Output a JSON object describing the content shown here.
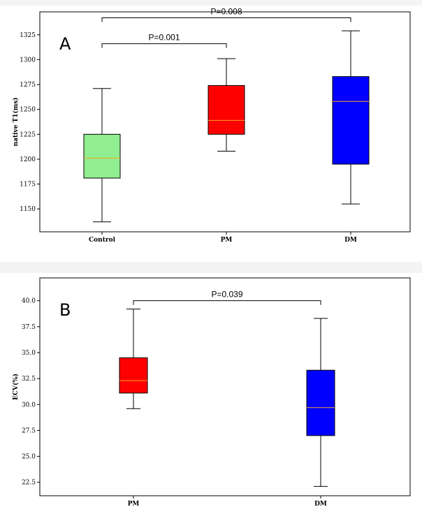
{
  "chart_data": [
    {
      "type": "box",
      "panel_label": "A",
      "ylabel": "native T1(ms)",
      "xlabel": "",
      "ylim": [
        1127,
        1348
      ],
      "yticks": [
        "1150",
        "1175",
        "1200",
        "1225",
        "1250",
        "1275",
        "1300",
        "1325"
      ],
      "categories": [
        "Control",
        "PM",
        "DM"
      ],
      "boxes": [
        {
          "name": "Control",
          "whisker_low": 1137,
          "q1": 1181,
          "median": 1201,
          "q3": 1225,
          "whisker_high": 1271,
          "color": "#90ee90"
        },
        {
          "name": "PM",
          "whisker_low": 1208,
          "q1": 1225,
          "median": 1239,
          "q3": 1274,
          "whisker_high": 1301,
          "color": "#ff0000"
        },
        {
          "name": "DM",
          "whisker_low": 1155,
          "q1": 1195,
          "median": 1258,
          "q3": 1283,
          "whisker_high": 1329,
          "color": "#0000ff"
        }
      ],
      "annotations": [
        {
          "text": "P=0.001",
          "from": "Control",
          "to": "PM",
          "level": 1316
        },
        {
          "text": "P=0.008",
          "from": "Control",
          "to": "DM",
          "level": 1342
        }
      ]
    },
    {
      "type": "box",
      "panel_label": "B",
      "ylabel": "ECV(%)",
      "xlabel": "",
      "ylim": [
        21.2,
        42.2
      ],
      "yticks": [
        "22.5",
        "25.0",
        "27.5",
        "30.0",
        "32.5",
        "35.0",
        "37.5",
        "40.0"
      ],
      "categories": [
        "PM",
        "DM"
      ],
      "boxes": [
        {
          "name": "PM",
          "whisker_low": 29.6,
          "q1": 31.1,
          "median": 32.3,
          "q3": 34.5,
          "whisker_high": 39.2,
          "color": "#ff0000"
        },
        {
          "name": "DM",
          "whisker_low": 22.1,
          "q1": 27.0,
          "median": 29.7,
          "q3": 33.3,
          "whisker_high": 38.3,
          "color": "#0000ff"
        }
      ],
      "annotations": [
        {
          "text": "P=0.039",
          "from": "PM",
          "to": "DM",
          "level": 40.0
        }
      ]
    }
  ],
  "colors": {
    "median": "#f5a623",
    "line": "#000000"
  }
}
